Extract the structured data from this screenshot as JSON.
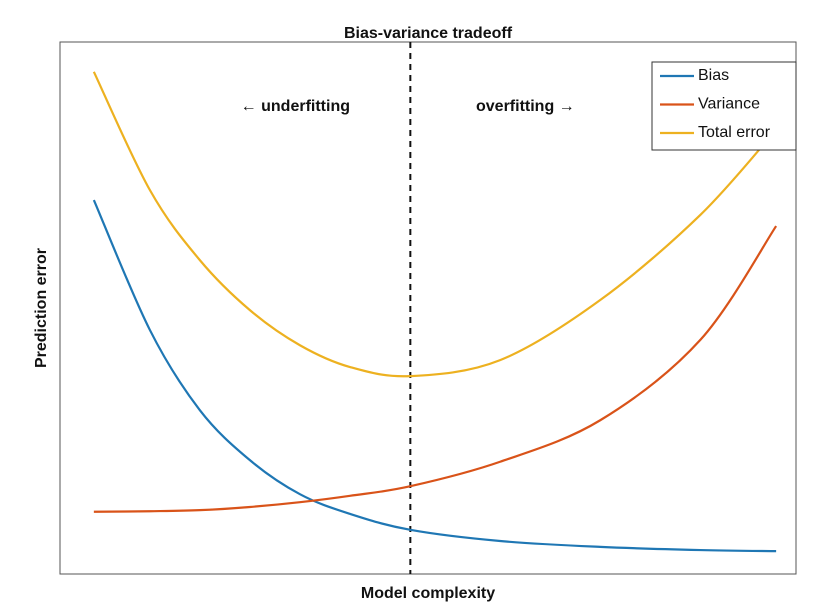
{
  "chart_data": {
    "type": "line",
    "title": "Bias-variance tradeoff",
    "x_label": "Model complexity",
    "y_label": "Prediction error",
    "x": [
      4.6,
      12.2,
      19.0,
      25.8,
      32.6,
      39.4,
      47.6,
      59.8,
      73.4,
      87.0,
      97.3
    ],
    "series": [
      {
        "name": "Bias",
        "color": "#1f77b4",
        "values": [
          70.3,
          45.9,
          30.8,
          21.4,
          15.0,
          11.3,
          8.3,
          6.2,
          5.1,
          4.5,
          4.3
        ]
      },
      {
        "name": "Variance",
        "color": "#d95319",
        "values": [
          11.7,
          11.8,
          12.0,
          12.6,
          13.5,
          14.7,
          16.5,
          21.1,
          28.9,
          44.0,
          65.4
        ]
      },
      {
        "name": "Total error",
        "color": "#edb120",
        "values": [
          94.4,
          72.2,
          59.0,
          49.6,
          43.0,
          38.9,
          37.2,
          40.2,
          51.5,
          67.5,
          83.5
        ]
      }
    ],
    "xlim": [
      0,
      100
    ],
    "ylim": [
      0,
      100
    ],
    "vline": 47.6,
    "annotations": [
      "← underfitting",
      "overfitting →"
    ],
    "legend": "upper right",
    "grid": false
  }
}
